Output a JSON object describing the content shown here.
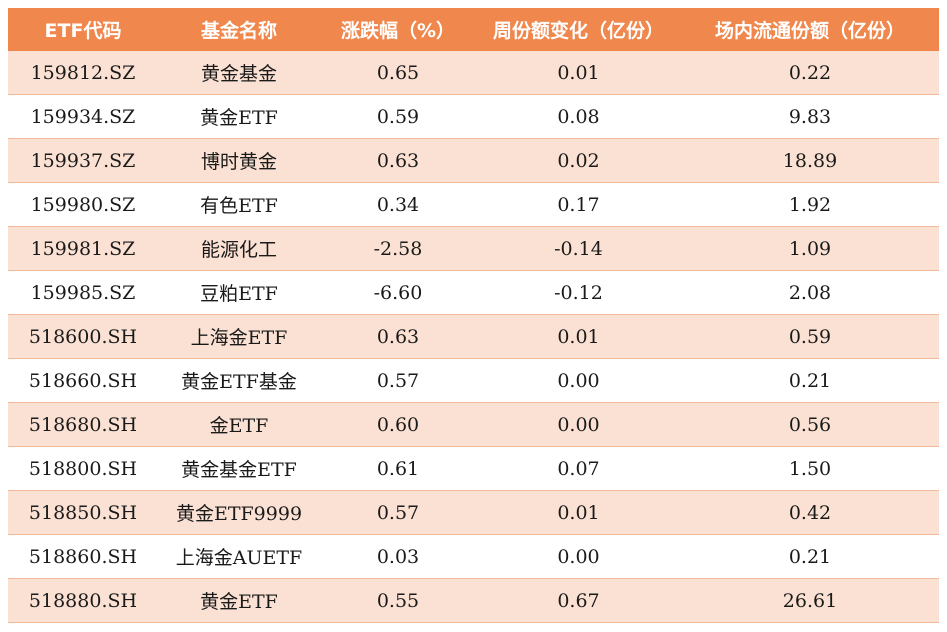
{
  "header": {
    "code": "ETF代码",
    "name": "基金名称",
    "change": "涨跌幅（%）",
    "weekly_change": "周份额变化（亿份）",
    "shares": "场内流通份额（亿份）"
  },
  "rows": [
    {
      "code": "159812.SZ",
      "name": "黄金基金",
      "change": "0.65",
      "weekly_change": "0.01",
      "shares": "0.22"
    },
    {
      "code": "159934.SZ",
      "name": "黄金ETF",
      "change": "0.59",
      "weekly_change": "0.08",
      "shares": "9.83"
    },
    {
      "code": "159937.SZ",
      "name": "博时黄金",
      "change": "0.63",
      "weekly_change": "0.02",
      "shares": "18.89"
    },
    {
      "code": "159980.SZ",
      "name": "有色ETF",
      "change": "0.34",
      "weekly_change": "0.17",
      "shares": "1.92"
    },
    {
      "code": "159981.SZ",
      "name": "能源化工",
      "change": "-2.58",
      "weekly_change": "-0.14",
      "shares": "1.09"
    },
    {
      "code": "159985.SZ",
      "name": "豆粕ETF",
      "change": "-6.60",
      "weekly_change": "-0.12",
      "shares": "2.08"
    },
    {
      "code": "518600.SH",
      "name": "上海金ETF",
      "change": "0.63",
      "weekly_change": "0.01",
      "shares": "0.59"
    },
    {
      "code": "518660.SH",
      "name": "黄金ETF基金",
      "change": "0.57",
      "weekly_change": "0.00",
      "shares": "0.21"
    },
    {
      "code": "518680.SH",
      "name": "金ETF",
      "change": "0.60",
      "weekly_change": "0.00",
      "shares": "0.56"
    },
    {
      "code": "518800.SH",
      "name": "黄金基金ETF",
      "change": "0.61",
      "weekly_change": "0.07",
      "shares": "1.50"
    },
    {
      "code": "518850.SH",
      "name": "黄金ETF9999",
      "change": "0.57",
      "weekly_change": "0.01",
      "shares": "0.42"
    },
    {
      "code": "518860.SH",
      "name": "上海金AUETF",
      "change": "0.03",
      "weekly_change": "0.00",
      "shares": "0.21"
    },
    {
      "code": "518880.SH",
      "name": "黄金ETF",
      "change": "0.55",
      "weekly_change": "0.67",
      "shares": "26.61"
    }
  ],
  "colors": {
    "header_bg": "#f0874c",
    "band_bg": "#fbe1d3",
    "row_border": "#f3bb9c"
  }
}
